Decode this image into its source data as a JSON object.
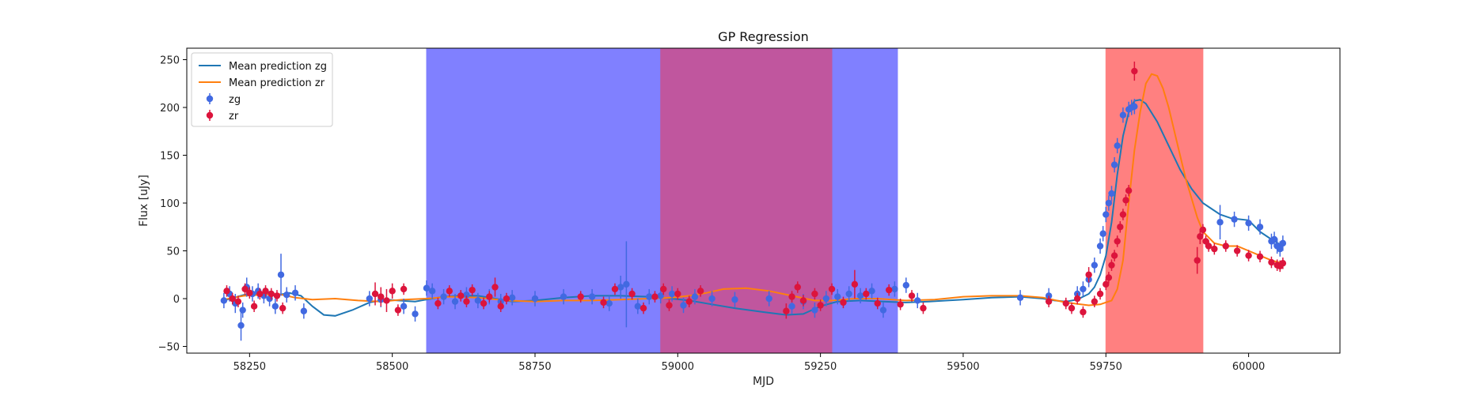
{
  "chart_data": {
    "type": "scatter",
    "title": "GP Regression",
    "xlabel": "MJD",
    "ylabel": "Flux [uJy]",
    "xlim": [
      58140,
      60160
    ],
    "ylim": [
      -57,
      262
    ],
    "xticks": [
      58250,
      58500,
      58750,
      59000,
      59250,
      59500,
      59750,
      60000
    ],
    "yticks": [
      -50,
      0,
      50,
      100,
      150,
      200,
      250
    ],
    "legend_position": "upper-left",
    "colors": {
      "zg_line": "#1f77b4",
      "zr_line": "#ff7f0e",
      "zg_points": "#4169e1",
      "zr_points": "#dc143c",
      "blue_band": "#8080ff",
      "overlap_band": "#c0569e",
      "red_band": "#ff8080"
    },
    "shaded_regions": [
      {
        "x0": 58560,
        "x1": 59385,
        "color": "#8080ff"
      },
      {
        "x0": 58970,
        "x1": 59270,
        "color": "#c0569e"
      },
      {
        "x0": 59750,
        "x1": 59920,
        "color": "#ff8080"
      }
    ],
    "series": [
      {
        "name": "Mean prediction zg",
        "kind": "line",
        "color": "#1f77b4",
        "x": [
          58205,
          58240,
          58270,
          58300,
          58320,
          58340,
          58360,
          58380,
          58400,
          58430,
          58460,
          58490,
          58510,
          58540,
          58560,
          58590,
          58620,
          58650,
          58680,
          58710,
          58750,
          58800,
          58850,
          58900,
          58950,
          58990,
          59020,
          59060,
          59100,
          59150,
          59190,
          59220,
          59250,
          59280,
          59320,
          59360,
          59400,
          59440,
          59500,
          59550,
          59600,
          59640,
          59660,
          59680,
          59700,
          59720,
          59730,
          59740,
          59750,
          59760,
          59770,
          59780,
          59790,
          59800,
          59810,
          59820,
          59840,
          59860,
          59880,
          59900,
          59920,
          59950,
          59970,
          60000,
          60020,
          60040,
          60060
        ],
        "y": [
          -2,
          4,
          5,
          4,
          6,
          3,
          -8,
          -17,
          -18,
          -12,
          -4,
          -1,
          -2,
          -3,
          -1,
          2,
          3,
          3,
          0,
          -3,
          -2,
          1,
          3,
          3,
          2,
          0,
          -2,
          -6,
          -10,
          -14,
          -17,
          -16,
          -8,
          -3,
          -2,
          -3,
          -4,
          -3,
          -1,
          1,
          2,
          0,
          -2,
          -3,
          -1,
          5,
          12,
          25,
          45,
          80,
          130,
          170,
          195,
          207,
          208,
          204,
          185,
          160,
          135,
          115,
          100,
          88,
          84,
          82,
          70,
          62,
          55
        ]
      },
      {
        "name": "Mean prediction zr",
        "kind": "line",
        "color": "#ff7f0e",
        "x": [
          58205,
          58240,
          58270,
          58300,
          58330,
          58360,
          58400,
          58440,
          58480,
          58520,
          58560,
          58600,
          58650,
          58700,
          58750,
          58800,
          58850,
          58900,
          58950,
          58990,
          59020,
          59050,
          59080,
          59120,
          59160,
          59200,
          59240,
          59270,
          59310,
          59350,
          59400,
          59450,
          59500,
          59550,
          59600,
          59640,
          59680,
          59720,
          59740,
          59760,
          59770,
          59780,
          59790,
          59800,
          59810,
          59820,
          59830,
          59840,
          59850,
          59860,
          59870,
          59880,
          59890,
          59900,
          59910,
          59920,
          59940,
          59960,
          59980,
          60000,
          60020,
          60040,
          60060
        ],
        "y": [
          -1,
          3,
          4,
          5,
          1,
          -1,
          0,
          -2,
          -3,
          -1,
          0,
          2,
          1,
          -2,
          -3,
          -2,
          -2,
          -1,
          0,
          1,
          3,
          6,
          10,
          11,
          8,
          3,
          -2,
          -2,
          0,
          0,
          -2,
          -1,
          2,
          3,
          3,
          1,
          -4,
          -7,
          -6,
          -2,
          10,
          40,
          100,
          155,
          195,
          225,
          235,
          233,
          220,
          200,
          175,
          150,
          125,
          105,
          85,
          70,
          58,
          55,
          55,
          50,
          45,
          40,
          37
        ]
      },
      {
        "name": "zg",
        "kind": "errorbar",
        "color": "#4169e1",
        "x": [
          58205,
          58215,
          58225,
          58235,
          58238,
          58245,
          58255,
          58265,
          58275,
          58285,
          58295,
          58305,
          58315,
          58330,
          58345,
          58460,
          58480,
          58520,
          58540,
          58560,
          58570,
          58590,
          58610,
          58630,
          58650,
          58670,
          58690,
          58710,
          58750,
          58800,
          58850,
          58880,
          58900,
          58910,
          58930,
          58950,
          58970,
          58990,
          59010,
          59030,
          59060,
          59100,
          59160,
          59200,
          59220,
          59240,
          59260,
          59280,
          59300,
          59320,
          59340,
          59360,
          59380,
          59400,
          59420,
          59600,
          59650,
          59700,
          59710,
          59720,
          59730,
          59740,
          59745,
          59750,
          59755,
          59760,
          59765,
          59770,
          59780,
          59790,
          59795,
          59800,
          59950,
          59975,
          60000,
          60020,
          60040,
          60045,
          60050,
          60055,
          60060
        ],
        "y": [
          -2,
          5,
          -5,
          -28,
          -12,
          12,
          5,
          8,
          3,
          0,
          -8,
          25,
          4,
          6,
          -13,
          0,
          -1,
          -8,
          -16,
          11,
          8,
          2,
          -3,
          4,
          -2,
          2,
          -3,
          1,
          0,
          2,
          2,
          -5,
          12,
          15,
          -8,
          2,
          3,
          5,
          -7,
          2,
          0,
          -1,
          0,
          -8,
          -3,
          -12,
          0,
          2,
          5,
          3,
          8,
          -12,
          10,
          14,
          -2,
          1,
          3,
          5,
          10,
          20,
          35,
          55,
          68,
          88,
          100,
          110,
          140,
          160,
          192,
          198,
          200,
          201,
          80,
          83,
          79,
          75,
          60,
          62,
          55,
          52,
          58
        ],
        "yerr": [
          8,
          8,
          10,
          16,
          8,
          10,
          8,
          8,
          8,
          8,
          8,
          22,
          8,
          8,
          8,
          8,
          8,
          8,
          8,
          8,
          8,
          8,
          8,
          8,
          8,
          8,
          8,
          8,
          8,
          8,
          8,
          8,
          12,
          45,
          8,
          8,
          8,
          8,
          8,
          8,
          8,
          8,
          8,
          8,
          8,
          8,
          8,
          8,
          8,
          8,
          8,
          8,
          8,
          8,
          8,
          8,
          8,
          8,
          8,
          8,
          8,
          8,
          8,
          8,
          8,
          8,
          8,
          8,
          8,
          8,
          8,
          8,
          18,
          8,
          8,
          8,
          8,
          8,
          8,
          8,
          8
        ]
      },
      {
        "name": "zr",
        "kind": "errorbar",
        "color": "#dc143c",
        "x": [
          58210,
          58220,
          58230,
          58242,
          58250,
          58258,
          58268,
          58278,
          58288,
          58298,
          58308,
          58470,
          58480,
          58490,
          58500,
          58510,
          58520,
          58580,
          58600,
          58620,
          58630,
          58640,
          58660,
          58670,
          58680,
          58690,
          58700,
          58830,
          58870,
          58890,
          58920,
          58940,
          58960,
          58975,
          58985,
          59000,
          59020,
          59040,
          59190,
          59200,
          59210,
          59220,
          59240,
          59250,
          59270,
          59290,
          59310,
          59330,
          59350,
          59370,
          59390,
          59410,
          59430,
          59650,
          59680,
          59690,
          59700,
          59710,
          59720,
          59730,
          59740,
          59750,
          59755,
          59760,
          59765,
          59770,
          59775,
          59780,
          59785,
          59790,
          59800,
          59910,
          59915,
          59920,
          59925,
          59930,
          59940,
          59960,
          59980,
          60000,
          60020,
          60040,
          60050,
          60055,
          60060
        ],
        "y": [
          8,
          0,
          -3,
          10,
          6,
          -8,
          5,
          8,
          5,
          3,
          -10,
          5,
          2,
          -2,
          8,
          -12,
          10,
          -5,
          8,
          3,
          -3,
          9,
          -5,
          2,
          12,
          -8,
          0,
          2,
          -4,
          10,
          5,
          -10,
          2,
          10,
          -7,
          5,
          -3,
          8,
          -13,
          2,
          12,
          -2,
          5,
          -7,
          10,
          -4,
          15,
          5,
          -5,
          9,
          -6,
          3,
          -10,
          -3,
          -5,
          -10,
          0,
          -14,
          25,
          -3,
          5,
          15,
          22,
          35,
          45,
          60,
          75,
          88,
          103,
          113,
          238,
          40,
          65,
          72,
          60,
          55,
          52,
          55,
          50,
          45,
          44,
          38,
          35,
          34,
          37
        ],
        "yerr": [
          6,
          6,
          6,
          6,
          6,
          6,
          6,
          6,
          6,
          6,
          6,
          12,
          10,
          12,
          8,
          6,
          6,
          6,
          6,
          6,
          6,
          6,
          6,
          6,
          10,
          6,
          6,
          6,
          6,
          6,
          6,
          6,
          6,
          6,
          6,
          6,
          6,
          6,
          8,
          6,
          6,
          6,
          6,
          6,
          6,
          6,
          15,
          6,
          6,
          6,
          6,
          6,
          6,
          6,
          6,
          6,
          6,
          6,
          8,
          6,
          6,
          6,
          6,
          6,
          6,
          6,
          6,
          6,
          6,
          6,
          10,
          14,
          8,
          6,
          6,
          6,
          6,
          6,
          6,
          6,
          6,
          6,
          6,
          6,
          6
        ]
      }
    ]
  }
}
